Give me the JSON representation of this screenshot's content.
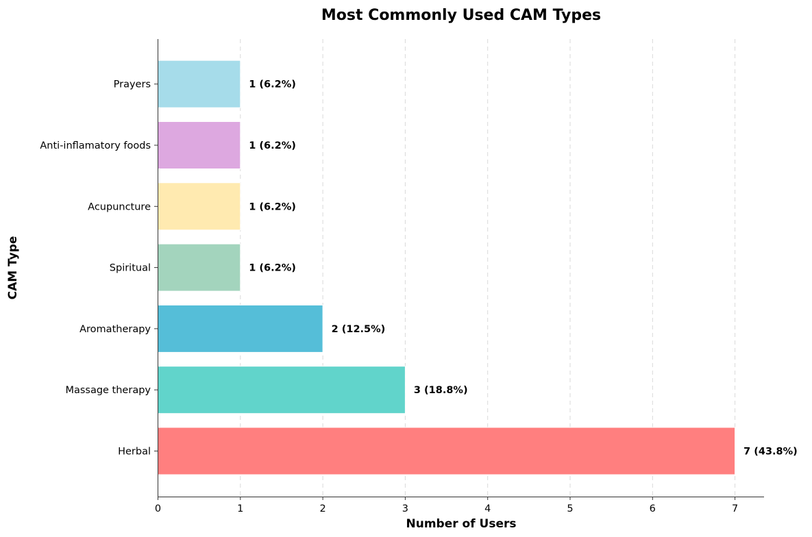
{
  "chart_data": {
    "type": "bar",
    "orientation": "horizontal",
    "title": "Most Commonly Used CAM Types",
    "xlabel": "Number of Users",
    "ylabel": "CAM Type",
    "categories": [
      "Herbal",
      "Massage therapy",
      "Aromatherapy",
      "Spiritual",
      "Acupuncture",
      "Anti-inflamatory foods",
      "Prayers"
    ],
    "values": [
      7,
      3,
      2,
      1,
      1,
      1,
      1
    ],
    "data_labels": [
      "7 (43.8%)",
      "3 (18.8%)",
      "2 (12.5%)",
      "1 (6.2%)",
      "1 (6.2%)",
      "1 (6.2%)",
      "1 (6.2%)"
    ],
    "colors": [
      "#FF7F7F",
      "#61D4CB",
      "#55BED8",
      "#A3D4BD",
      "#FFEAB0",
      "#DDA8E0",
      "#A6DCEA"
    ],
    "xlim": [
      0,
      7.35
    ],
    "xticks": [
      "0",
      "1",
      "2",
      "3",
      "4",
      "5",
      "6",
      "7"
    ],
    "grid": "x-dashed",
    "legend": "none"
  }
}
